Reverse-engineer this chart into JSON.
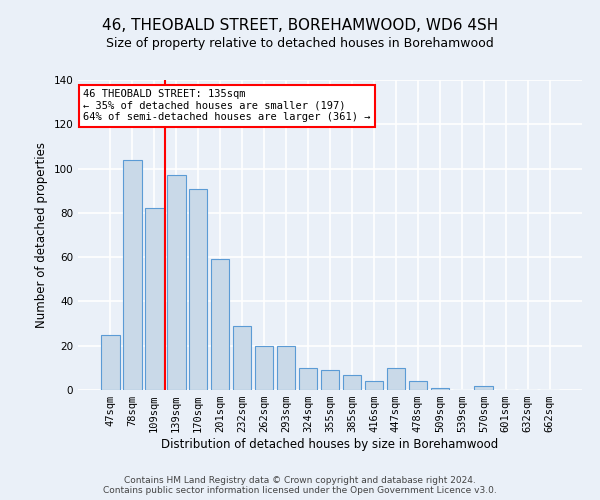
{
  "title": "46, THEOBALD STREET, BOREHAMWOOD, WD6 4SH",
  "subtitle": "Size of property relative to detached houses in Borehamwood",
  "xlabel": "Distribution of detached houses by size in Borehamwood",
  "ylabel": "Number of detached properties",
  "bar_labels": [
    "47sqm",
    "78sqm",
    "109sqm",
    "139sqm",
    "170sqm",
    "201sqm",
    "232sqm",
    "262sqm",
    "293sqm",
    "324sqm",
    "355sqm",
    "385sqm",
    "416sqm",
    "447sqm",
    "478sqm",
    "509sqm",
    "539sqm",
    "570sqm",
    "601sqm",
    "632sqm",
    "662sqm"
  ],
  "bar_values": [
    25,
    104,
    82,
    97,
    91,
    59,
    29,
    20,
    20,
    10,
    9,
    7,
    4,
    10,
    4,
    1,
    0,
    2,
    0,
    0,
    0
  ],
  "bar_color": "#c9d9e8",
  "bar_edge_color": "#5b9bd5",
  "vline_pos": 2.5,
  "vline_color": "red",
  "annotation_text": "46 THEOBALD STREET: 135sqm\n← 35% of detached houses are smaller (197)\n64% of semi-detached houses are larger (361) →",
  "annotation_box_color": "white",
  "annotation_box_edge_color": "red",
  "ylim": [
    0,
    140
  ],
  "yticks": [
    0,
    20,
    40,
    60,
    80,
    100,
    120,
    140
  ],
  "footnote": "Contains HM Land Registry data © Crown copyright and database right 2024.\nContains public sector information licensed under the Open Government Licence v3.0.",
  "bg_color": "#eaf0f8",
  "plot_bg_color": "#eaf0f8",
  "grid_color": "white",
  "title_fontsize": 11,
  "subtitle_fontsize": 9,
  "axis_label_fontsize": 8.5,
  "tick_fontsize": 7.5,
  "footnote_fontsize": 6.5
}
